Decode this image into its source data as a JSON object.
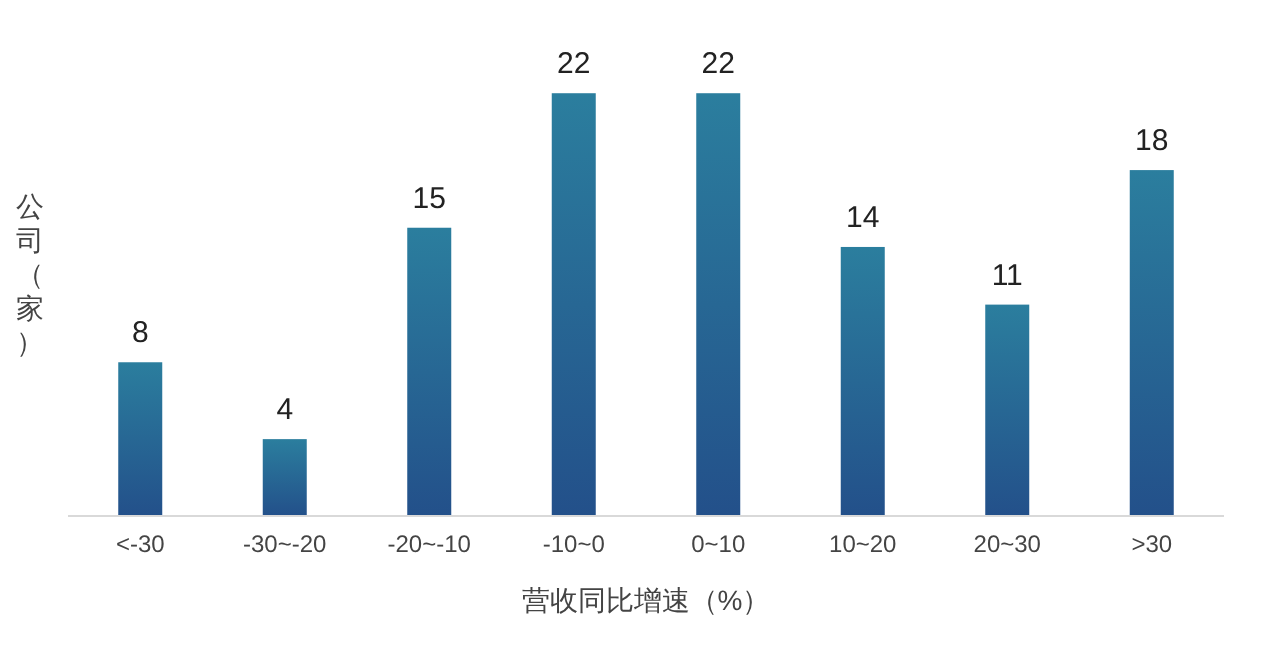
{
  "chart_data": {
    "type": "bar",
    "xlabel": "营收同比增速（%）",
    "ylabel": "公司（家）",
    "categories": [
      "<-30",
      "-30~-20",
      "-20~-10",
      "-10~0",
      "0~10",
      "10~20",
      "20~30",
      ">30"
    ],
    "values": [
      8,
      4,
      15,
      22,
      22,
      14,
      11,
      18
    ],
    "color": "#2b7e9e",
    "data_labels": true,
    "tick_labels": "x"
  }
}
